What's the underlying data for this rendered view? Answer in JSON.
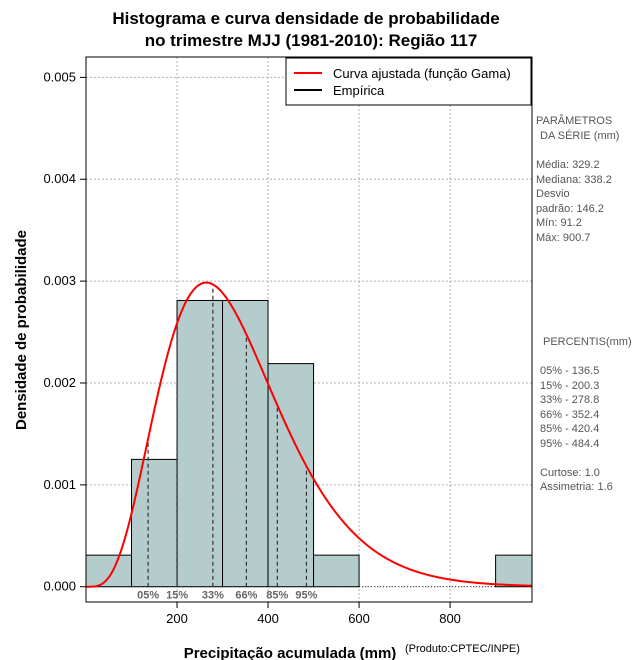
{
  "chart_data": {
    "type": "bar",
    "title": "Histograma e curva densidade de probabilidade",
    "subtitle": "no trimestre MJJ (1981-2010): Região 117",
    "xlabel": "Precipitação acumulada (mm)",
    "ylabel": "Densidade de probabilidade",
    "credit": "(Produto:CPTEC/INPE)",
    "xlim": [
      0,
      980
    ],
    "ylim": [
      -0.00015,
      0.0052
    ],
    "xticks": [
      200,
      400,
      600,
      800
    ],
    "yticks": [
      0.0,
      0.001,
      0.002,
      0.003,
      0.004,
      0.005
    ],
    "ytick_labels": [
      "0.000",
      "0.001",
      "0.002",
      "0.003",
      "0.004",
      "0.005"
    ],
    "bins": [
      {
        "x0": 0,
        "x1": 100,
        "density": 0.00031
      },
      {
        "x0": 100,
        "x1": 200,
        "density": 0.00125
      },
      {
        "x0": 200,
        "x1": 300,
        "density": 0.00281
      },
      {
        "x0": 300,
        "x1": 400,
        "density": 0.00281
      },
      {
        "x0": 400,
        "x1": 500,
        "density": 0.00219
      },
      {
        "x0": 500,
        "x1": 600,
        "density": 0.00031
      },
      {
        "x0": 900,
        "x1": 1000,
        "density": 0.00031
      }
    ],
    "gamma": {
      "shape": 5.07,
      "scale": 64.9
    },
    "percentiles": [
      {
        "label": "05%",
        "value": 136.5
      },
      {
        "label": "15%",
        "value": 200.3
      },
      {
        "label": "33%",
        "value": 278.8
      },
      {
        "label": "66%",
        "value": 352.4
      },
      {
        "label": "85%",
        "value": 420.4
      },
      {
        "label": "95%",
        "value": 484.4
      }
    ],
    "legend": [
      {
        "label": "Curva ajustada (função Gama)",
        "color": "#ff0000"
      },
      {
        "label": "Empírica",
        "color": "#000000"
      }
    ],
    "grid": true,
    "colors": {
      "bar_fill": "#b4cccc",
      "curve": "#ff0000"
    }
  },
  "side_panel": {
    "params_title_line1": "PARÂMETROS",
    "params_title_line2": "DA SÉRIE (mm)",
    "media": "Média:  329.2",
    "mediana": "Mediana:  338.2",
    "desvio_line1": "Desvio",
    "desvio_line2": "padrão:  146.2",
    "min": "Mín:  91.2",
    "max": "Máx:  900.7",
    "percentis_title": "PERCENTIS(mm)",
    "p05": "05% -  136.5",
    "p15": "15% -  200.3",
    "p33": "33% -  278.8",
    "p66": "66% -  352.4",
    "p85": "85% -  420.4",
    "p95": "95% -  484.4",
    "curtose": "Curtose:  1.0",
    "assimetria": "Assimetria:  1.6"
  }
}
